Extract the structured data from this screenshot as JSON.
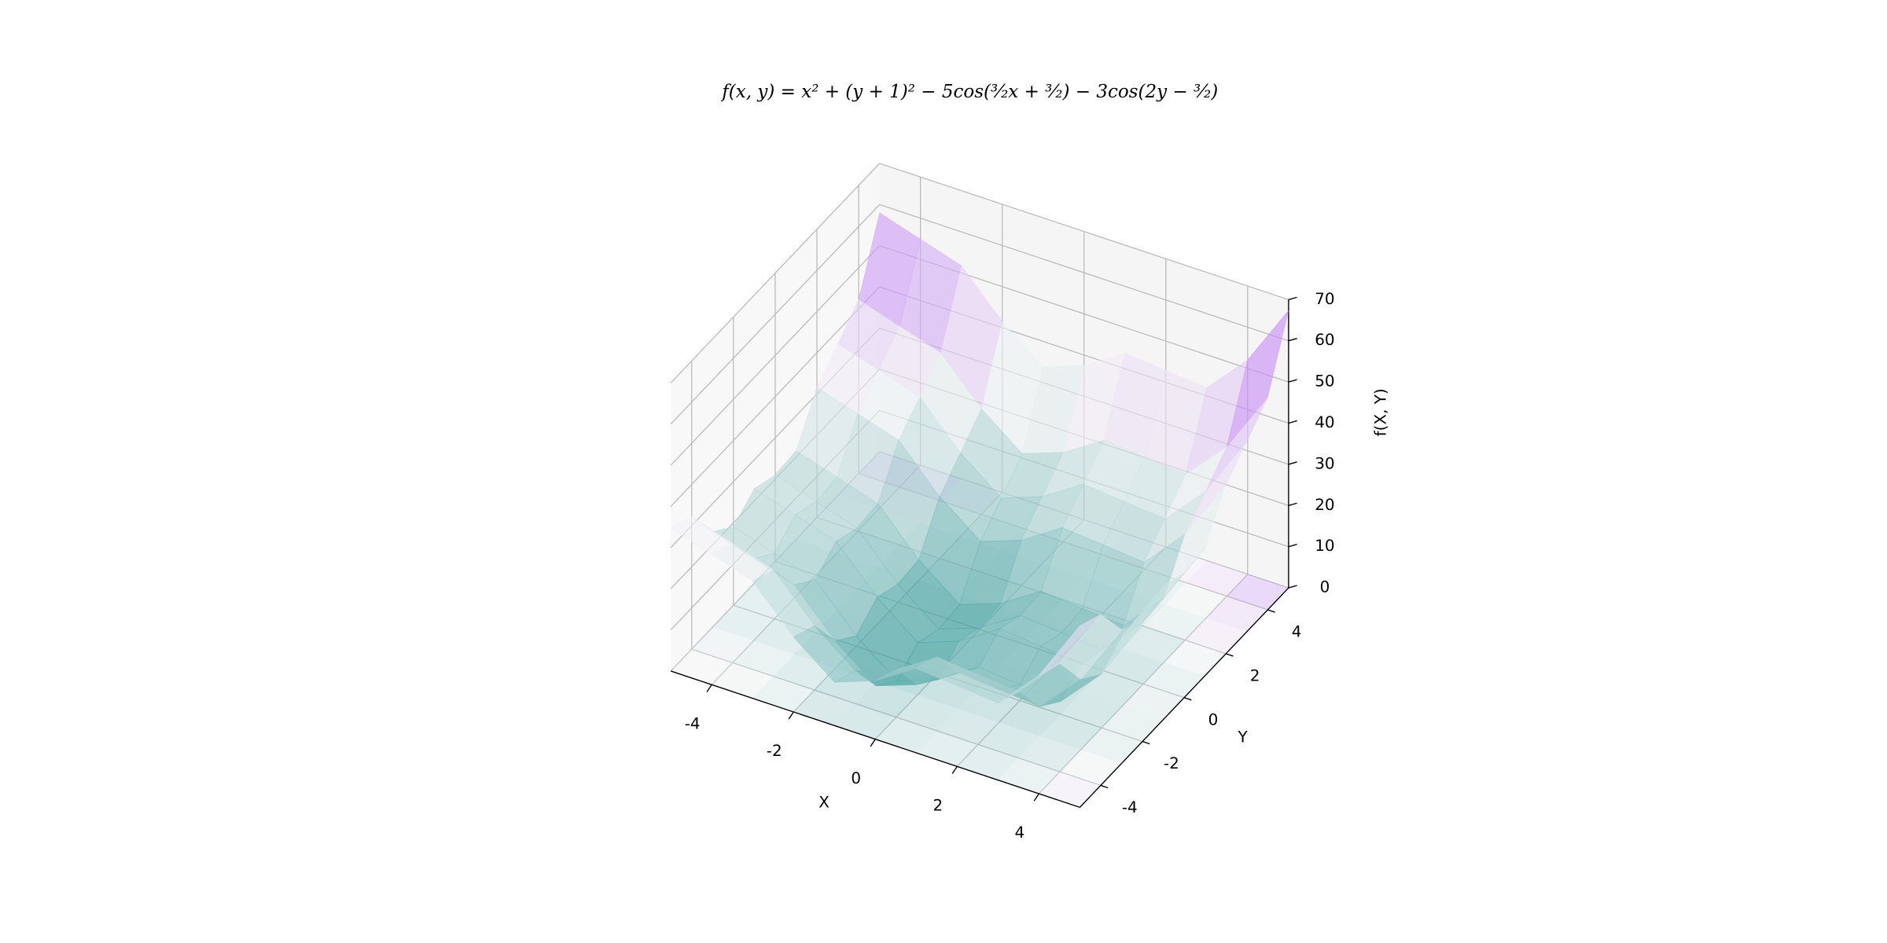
{
  "chart_data": {
    "type": "surface",
    "title": "f(x, y) = x² + (y + 1)² − 5cos(³⁄₂x + ³⁄₂) − 3cos(2y − ³⁄₂)",
    "xlabel": "X",
    "ylabel": "Y",
    "zlabel": "f(X, Y)",
    "x": [
      -5,
      -4,
      -3,
      -2,
      -1,
      0,
      1,
      2,
      3,
      4,
      5
    ],
    "y": [
      -5,
      -4,
      -3,
      -2,
      -1,
      0,
      1,
      2,
      3,
      4,
      5
    ],
    "z": [
      [
        34.7,
        31.6,
        28.5,
        18.2,
        10.5,
        14.2,
        20.5,
        19.6,
        18.7,
        28.8,
        44.1
      ],
      [
        32.2,
        29.0,
        25.9,
        15.6,
        8.0,
        11.6,
        17.9,
        17.0,
        16.2,
        26.3,
        41.5
      ],
      [
        23.2,
        20.0,
        16.9,
        6.6,
        -1.0,
        2.6,
        8.9,
        8.0,
        7.2,
        17.2,
        32.5
      ],
      [
        19.1,
        15.9,
        12.8,
        2.5,
        -5.1,
        -1.5,
        4.8,
        3.9,
        3.1,
        13.1,
        28.4
      ],
      [
        23.0,
        19.9,
        16.8,
        6.5,
        -1.2,
        2.5,
        8.8,
        7.9,
        7.0,
        17.1,
        32.4
      ],
      [
        21.0,
        17.8,
        14.7,
        4.4,
        -3.2,
        0.4,
        6.7,
        5.8,
        5.0,
        15.1,
        30.3
      ],
      [
        21.6,
        18.4,
        15.3,
        5.0,
        -2.6,
        1.0,
        7.3,
        6.4,
        5.6,
        15.6,
        30.9
      ],
      [
        31.6,
        28.5,
        25.4,
        15.0,
        7.4,
        11.0,
        17.4,
        16.5,
        15.6,
        25.7,
        41.0
      ],
      [
        36.8,
        33.7,
        30.6,
        20.3,
        12.6,
        16.3,
        22.6,
        21.7,
        20.8,
        30.9,
        46.2
      ],
      [
        42.3,
        39.1,
        36.0,
        25.7,
        18.1,
        21.7,
        28.0,
        27.1,
        26.3,
        36.3,
        51.6
      ],
      [
        58.0,
        54.9,
        51.8,
        41.5,
        33.8,
        37.5,
        43.8,
        42.9,
        42.0,
        52.1,
        67.4
      ]
    ],
    "colormap": [
      "#2b9494",
      "#f5f5f5",
      "#a23af7"
    ],
    "xlim": [
      -5,
      5
    ],
    "ylim": [
      -5,
      5
    ],
    "zlim": [
      0,
      70
    ],
    "xticks": [
      -4,
      -2,
      0,
      2,
      4
    ],
    "yticks": [
      -4,
      -2,
      0,
      2,
      4
    ],
    "zticks": [
      0,
      10,
      20,
      30,
      40,
      50,
      60,
      70
    ],
    "grid": true
  }
}
